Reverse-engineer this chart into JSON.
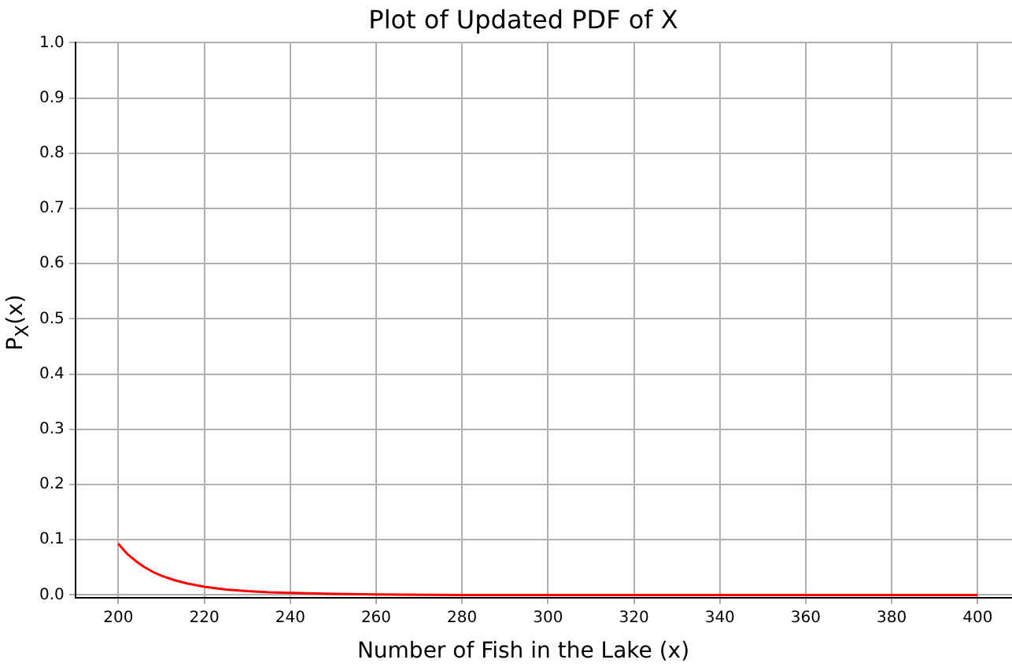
{
  "chart_data": {
    "type": "line",
    "title": "Plot of Updated PDF of X",
    "xlabel": "Number of Fish in the Lake (x)",
    "ylabel": "P$_{X}$(x)",
    "x": [
      200,
      202,
      204,
      206,
      208,
      210,
      213,
      216,
      220,
      225,
      230,
      235,
      240,
      250,
      260,
      280,
      300,
      350,
      400
    ],
    "series": [
      {
        "color": "#ff0000",
        "values": [
          0.093,
          0.075,
          0.062,
          0.051,
          0.042,
          0.035,
          0.027,
          0.021,
          0.015,
          0.01,
          0.007,
          0.005,
          0.004,
          0.002,
          0.001,
          0,
          0,
          0,
          0
        ]
      }
    ],
    "xlim": [
      190,
      408
    ],
    "xticks": [
      200,
      220,
      240,
      260,
      280,
      300,
      320,
      340,
      360,
      380,
      400
    ],
    "ylim": [
      -0.005,
      1.0
    ],
    "yticks": [
      {
        "value": 0,
        "label": "0.0"
      },
      0.1,
      0.2,
      0.3,
      0.4,
      0.5,
      0.6,
      0.7,
      0.8,
      0.9,
      {
        "value": 1,
        "label": "1.0"
      }
    ],
    "grid": true,
    "marker": "none",
    "line_style": "solid"
  }
}
